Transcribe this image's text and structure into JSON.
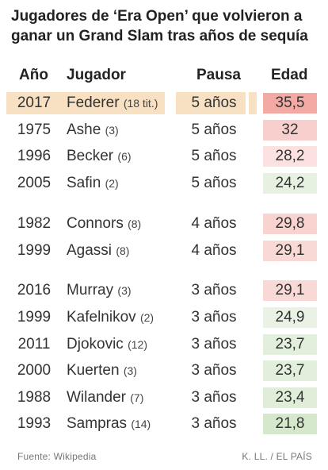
{
  "title": "Jugadores de ‘Era Open’ que volvieron a ganar un Grand Slam tras años de sequía",
  "headers": {
    "ano": "Año",
    "jugador": "Jugador",
    "pausa": "Pausa",
    "edad": "Edad"
  },
  "rows": [
    {
      "ano": "2017",
      "jugador": "Federer",
      "titulos": "(18 tit.)",
      "pausa": "5 años",
      "edad": "35,5",
      "color": "#f4aaa4",
      "highlight": true
    },
    {
      "ano": "1975",
      "jugador": "Ashe",
      "titulos": "(3)",
      "pausa": "5 años",
      "edad": "32",
      "color": "#f8cfcc",
      "highlight": false
    },
    {
      "ano": "1996",
      "jugador": "Becker",
      "titulos": "(6)",
      "pausa": "5 años",
      "edad": "28,2",
      "color": "#fbe2e0",
      "highlight": false
    },
    {
      "ano": "2005",
      "jugador": "Safin",
      "titulos": "(2)",
      "pausa": "5 años",
      "edad": "24,2",
      "color": "#e7f1e2",
      "highlight": false
    },
    {
      "ano": "1982",
      "jugador": "Connors",
      "titulos": "(8)",
      "pausa": "4 años",
      "edad": "29,8",
      "color": "#f8d3d0",
      "highlight": false
    },
    {
      "ano": "1999",
      "jugador": "Agassi",
      "titulos": "(8)",
      "pausa": "4 años",
      "edad": "29,1",
      "color": "#f9d9d6",
      "highlight": false
    },
    {
      "ano": "2016",
      "jugador": "Murray",
      "titulos": "(3)",
      "pausa": "3 años",
      "edad": "29,1",
      "color": "#f9d9d6",
      "highlight": false
    },
    {
      "ano": "1999",
      "jugador": "Kafelnikov",
      "titulos": "(2)",
      "pausa": "3 años",
      "edad": "24,9",
      "color": "#e9f2e4",
      "highlight": false
    },
    {
      "ano": "2011",
      "jugador": "Djokovic",
      "titulos": "(12)",
      "pausa": "3 años",
      "edad": "23,7",
      "color": "#e2efdc",
      "highlight": false
    },
    {
      "ano": "2000",
      "jugador": "Kuerten",
      "titulos": "(3)",
      "pausa": "3 años",
      "edad": "23,7",
      "color": "#e2efdc",
      "highlight": false
    },
    {
      "ano": "1988",
      "jugador": "Wilander",
      "titulos": "(7)",
      "pausa": "3 años",
      "edad": "23,4",
      "color": "#e0edd9",
      "highlight": false
    },
    {
      "ano": "1993",
      "jugador": "Sampras",
      "titulos": "(14)",
      "pausa": "3 años",
      "edad": "21,8",
      "color": "#d6e8cc",
      "highlight": false
    }
  ],
  "footer": {
    "source": "Fuente: Wikipedia",
    "credit": "K. LL. / EL PAÍS"
  }
}
